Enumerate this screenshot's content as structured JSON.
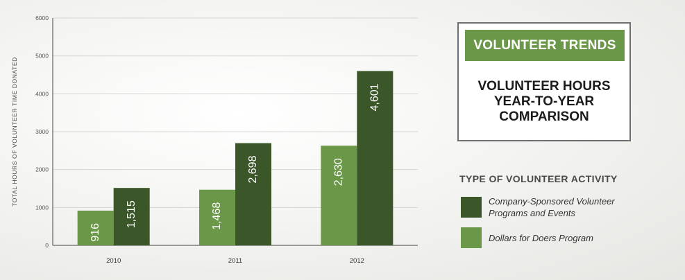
{
  "chart_data": {
    "type": "bar",
    "ylabel": "TOTAL HOURS OF VOLUNTEER TIME DONATED",
    "xlabel": "",
    "categories": [
      "2010",
      "2011",
      "2012"
    ],
    "ylim": [
      0,
      6000
    ],
    "yticks": [
      "0",
      "1000",
      "2000",
      "3000",
      "4000",
      "5000",
      "6000"
    ],
    "grid": true,
    "series": [
      {
        "name": "Dollars for Doers Program",
        "color": "#6b9848",
        "values": [
          916,
          1468,
          2630
        ],
        "labels": [
          "916",
          "1,468",
          "2,630"
        ]
      },
      {
        "name": "Company-Sponsored Volunteer Programs and Events",
        "color": "#3b5628",
        "values": [
          1515,
          2698,
          4601
        ],
        "labels": [
          "1,515",
          "2,698",
          "4,601"
        ]
      }
    ]
  },
  "title_box": {
    "banner": "VOLUNTEER TRENDS",
    "title_line1": "VOLUNTEER HOURS",
    "title_line2": "YEAR-TO-YEAR",
    "title_line3": "COMPARISON"
  },
  "legend": {
    "title": "TYPE OF VOLUNTEER ACTIVITY",
    "items": [
      {
        "line1": "Company-Sponsored Volunteer",
        "line2": "Programs and Events",
        "color": "#3b5628"
      },
      {
        "line1": "Dollars for Doers Program",
        "color": "#6b9848"
      }
    ]
  }
}
